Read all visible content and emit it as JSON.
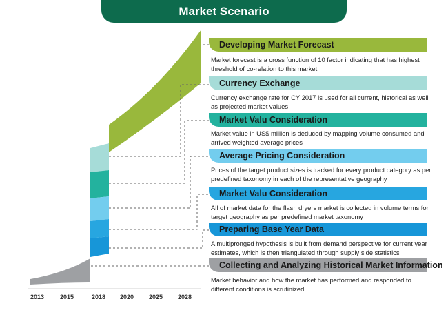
{
  "title": "Market Scenario",
  "colors": {
    "title_bg": "#0d6b4d",
    "green": "#99b83c",
    "mint": "#a6dcd8",
    "teal": "#23b29e",
    "sky": "#73cdee",
    "blue": "#27a6e0",
    "blue_dark": "#1796d8",
    "gray": "#9ea0a3"
  },
  "steps": [
    {
      "title": "Developing Market Forecast",
      "description": "Market forecast is a cross function of 10 factor indicating that has highest threshold of co-relation to this market",
      "color": "#99b83c"
    },
    {
      "title": "Currency Exchange",
      "description": "Currency exchange rate for CY 2017 is used for all current, historical as well as projected market values",
      "color": "#a6dcd8"
    },
    {
      "title": "Market Valu Consideration",
      "description": "Market value in US$ million is deduced by mapping volume consumed and arrived weighted average prices",
      "color": "#23b29e"
    },
    {
      "title": "Average Pricing Consideration",
      "description": "Prices of the target product sizes is tracked for every product category as per predefined taxonomy in each of the representative geography",
      "color": "#73cdee"
    },
    {
      "title": "Market Valu Consideration",
      "description": "All of market data for the flash dryers market is collected in volume terms for target geography as per predefined market taxonomy",
      "color": "#27a6e0"
    },
    {
      "title": "Preparing Base Year Data",
      "description": "A multipronged hypothesis is built from demand perspective for current year estimates, which is then triangulated through supply side statistics",
      "color": "#1796d8"
    },
    {
      "title": "Collecting and Analyzing Historical Market Information",
      "description": "Market behavior and how the market has performed and responded to different conditions is scrutinized",
      "color": "#9ea0a3"
    }
  ],
  "years": [
    "2013",
    "2015",
    "2018",
    "2020",
    "2025",
    "2028"
  ]
}
